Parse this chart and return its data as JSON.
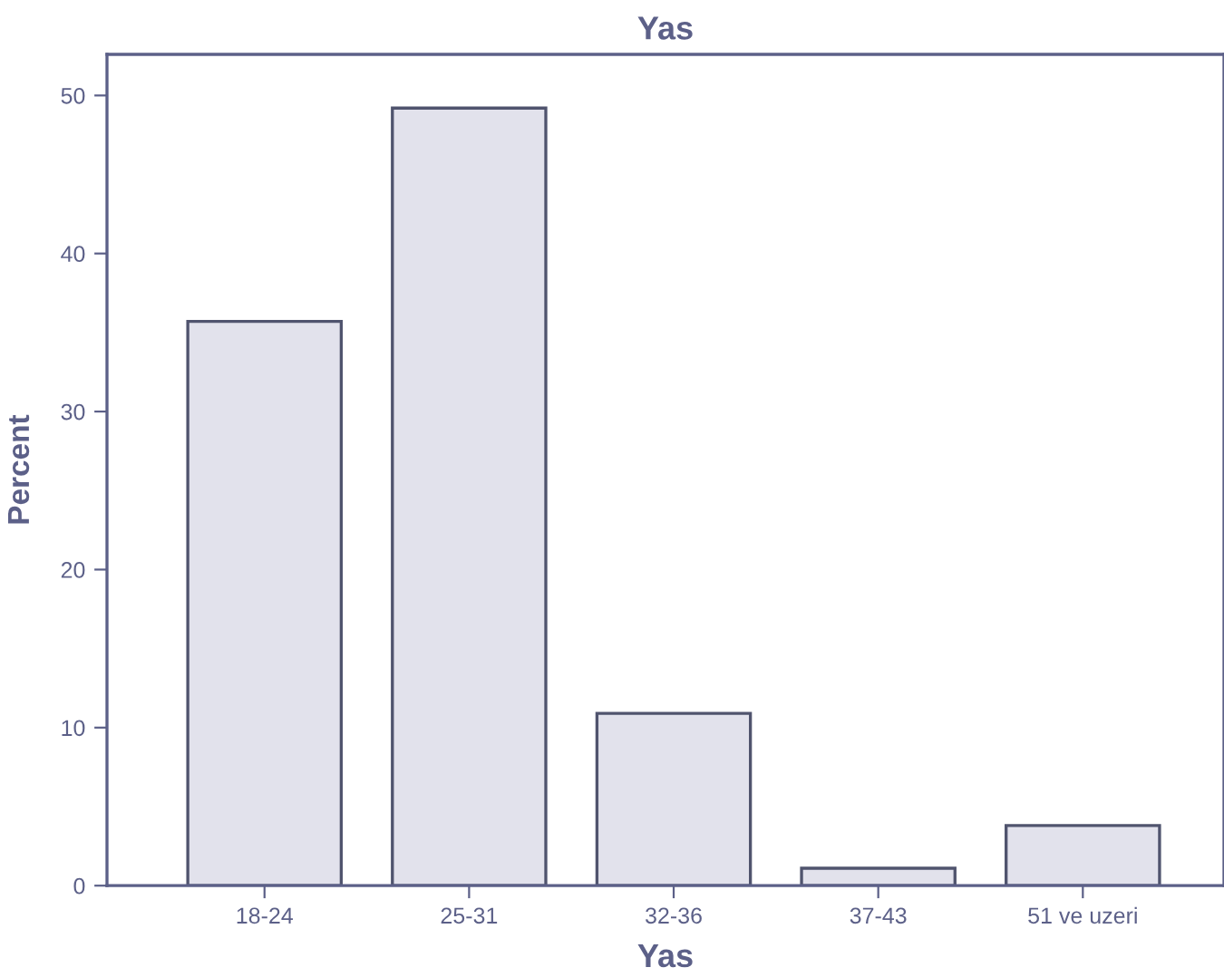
{
  "chart_data": {
    "type": "bar",
    "title": "Yas",
    "xlabel": "Yas",
    "ylabel": "Percent",
    "categories": [
      "18-24",
      "25-31",
      "32-36",
      "37-43",
      "51 ve uzeri"
    ],
    "values": [
      35.7,
      49.2,
      10.9,
      1.1,
      3.8
    ],
    "color": "#e2e2ec",
    "ylim": [
      0,
      52.6
    ],
    "yticks": [
      0,
      10,
      20,
      30,
      40,
      50
    ],
    "grid": false,
    "legend": false
  }
}
